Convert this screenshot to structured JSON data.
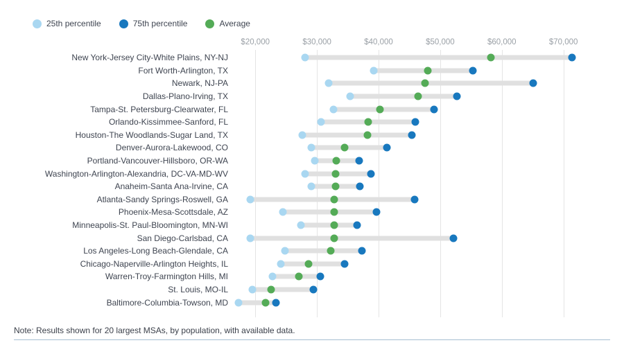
{
  "legend": [
    {
      "label": "25th percentile",
      "color": "#a9d7f1"
    },
    {
      "label": "75th percentile",
      "color": "#1878be"
    },
    {
      "label": "Average",
      "color": "#54ab57"
    }
  ],
  "note": "Note: Results shown for 20 largest MSAs, by population, with available data.",
  "chart_data": {
    "type": "dumbbell",
    "title": "",
    "xlabel": "",
    "ylabel": "",
    "xmin": 17500,
    "xmax": 76000,
    "grid": true,
    "legend_position": "top-left",
    "x_ticks": [
      20000,
      30000,
      40000,
      50000,
      60000,
      70000
    ],
    "x_tick_labels": [
      "$20,000",
      "$30,000",
      "$40,000",
      "$50,000",
      "$60,000",
      "$70,000"
    ],
    "categories": [
      "New York-Jersey City-White Plains, NY-NJ",
      "Fort Worth-Arlington, TX",
      "Newark, NJ-PA",
      "Dallas-Plano-Irving, TX",
      "Tampa-St. Petersburg-Clearwater, FL",
      "Orlando-Kissimmee-Sanford, FL",
      "Houston-The Woodlands-Sugar Land, TX",
      "Denver-Aurora-Lakewood, CO",
      "Portland-Vancouver-Hillsboro, OR-WA",
      "Washington-Arlington-Alexandria, DC-VA-MD-WV",
      "Anaheim-Santa Ana-Irvine, CA",
      "Atlanta-Sandy Springs-Roswell, GA",
      "Phoenix-Mesa-Scottsdale, AZ",
      "Minneapolis-St. Paul-Bloomington, MN-WI",
      "San Diego-Carlsbad, CA",
      "Los Angeles-Long Beach-Glendale, CA",
      "Chicago-Naperville-Arlington Heights, IL",
      "Warren-Troy-Farmington Hills, MI",
      "St. Louis, MO-IL",
      "Baltimore-Columbia-Towson, MD"
    ],
    "series": [
      {
        "name": "25th percentile",
        "key": "p25",
        "color": "#a9d7f1",
        "values": [
          28800,
          39800,
          32600,
          36000,
          33300,
          31300,
          28400,
          29800,
          30300,
          28800,
          29800,
          20000,
          25300,
          28100,
          20000,
          25600,
          24900,
          23600,
          20400,
          18200
        ]
      },
      {
        "name": "Average",
        "key": "avg",
        "color": "#54ab57",
        "values": [
          58500,
          48400,
          48000,
          46900,
          40800,
          38900,
          38800,
          35100,
          33800,
          33700,
          33700,
          33500,
          33500,
          33400,
          33500,
          32900,
          29300,
          27800,
          23400,
          22500
        ]
      },
      {
        "name": "75th percentile",
        "key": "p75",
        "color": "#1878be",
        "values": [
          71500,
          55600,
          65200,
          53100,
          49400,
          46400,
          45900,
          41900,
          37400,
          39300,
          37600,
          46300,
          40200,
          37100,
          52500,
          37900,
          35100,
          31200,
          30100,
          24200
        ]
      }
    ],
    "bar_color": "#e0e0e0"
  }
}
